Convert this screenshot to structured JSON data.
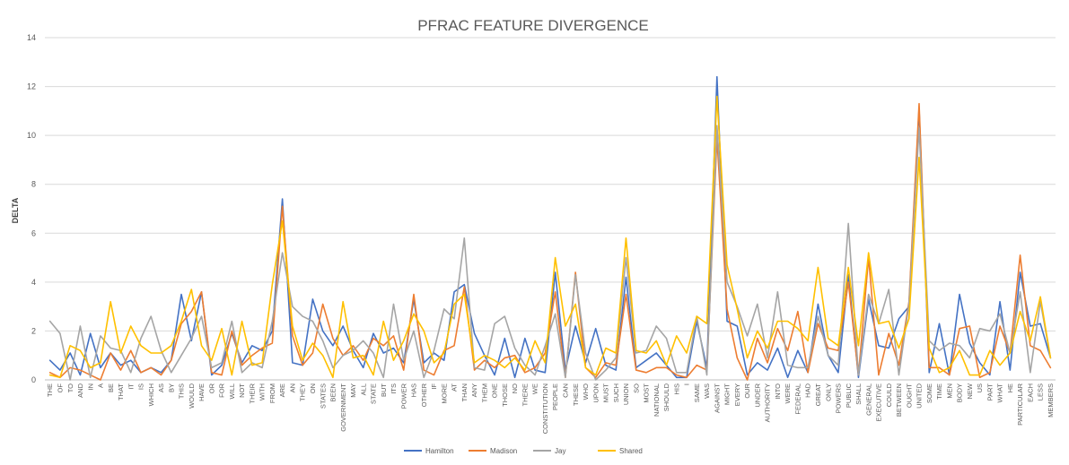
{
  "chart_data": {
    "type": "line",
    "title": "PFRAC FEATURE DIVERGENCE",
    "xlabel": "",
    "ylabel": "DELTA",
    "ylim": [
      0,
      14
    ],
    "yticks": [
      0,
      2,
      4,
      6,
      8,
      10,
      12,
      14
    ],
    "grid": true,
    "legend": "bottom",
    "categories": [
      "THE",
      "OF",
      "TO",
      "AND",
      "IN",
      "A",
      "BE",
      "THAT",
      "IT",
      "IS",
      "WHICH",
      "AS",
      "BY",
      "THIS",
      "WOULD",
      "HAVE",
      "OR",
      "FOR",
      "WILL",
      "NOT",
      "THEIR",
      "WITH",
      "FROM",
      "ARE",
      "AN",
      "THEY",
      "ON",
      "STATES",
      "BEEN",
      "GOVERNMENT",
      "MAY",
      "ALL",
      "STATE",
      "BUT",
      "ITS",
      "POWER",
      "HAS",
      "OTHER",
      "IF",
      "MORE",
      "AT",
      "THAN",
      "ANY",
      "THEM",
      "ONE",
      "THOSE",
      "NO",
      "THERE",
      "WE",
      "CONSTITUTION",
      "PEOPLE",
      "CAN",
      "THESE",
      "WHO",
      "UPON",
      "MUST",
      "SUCH",
      "UNION",
      "SO",
      "MOST",
      "NATIONAL",
      "SHOULD",
      "HIS",
      "I",
      "SAME",
      "WAS",
      "AGAINST",
      "MIGHT",
      "EVERY",
      "OUR",
      "UNDER",
      "AUTHORITY",
      "INTO",
      "WERE",
      "FEDERAL",
      "HAD",
      "GREAT",
      "ONLY",
      "POWERS",
      "PUBLIC",
      "SHALL",
      "GENERAL",
      "EXECUTIVE",
      "COULD",
      "BETWEEN",
      "OUGHT",
      "UNITED",
      "SOME",
      "TIME",
      "MEN",
      "BODY",
      "NEW",
      "US",
      "PART",
      "WHAT",
      "HE",
      "PARTICULAR",
      "EACH",
      "LESS",
      "MEMBERS"
    ],
    "series": [
      {
        "name": "Hamilton",
        "color": "#4472C4",
        "values": [
          0.8,
          0.4,
          1.1,
          0.2,
          1.9,
          0.5,
          1.1,
          0.6,
          0.8,
          0.3,
          0.5,
          0.3,
          0.8,
          3.5,
          1.6,
          3.6,
          0.2,
          0.6,
          1.9,
          0.7,
          1.4,
          1.2,
          2.0,
          7.4,
          0.7,
          0.6,
          3.3,
          2.0,
          1.4,
          2.2,
          1.2,
          0.5,
          1.9,
          1.1,
          1.3,
          0.7,
          3.3,
          0.7,
          1.1,
          0.8,
          3.6,
          3.9,
          1.9,
          1.0,
          0.2,
          1.7,
          0.1,
          1.7,
          0.4,
          0.3,
          4.4,
          0.4,
          2.2,
          0.7,
          2.1,
          0.6,
          0.4,
          4.2,
          0.5,
          0.8,
          1.1,
          0.6,
          0.1,
          0.1,
          2.4,
          0.5,
          12.4,
          2.4,
          2.2,
          0.2,
          0.7,
          0.4,
          1.3,
          0.1,
          1.2,
          0.3,
          3.1,
          1.0,
          0.3,
          4.3,
          0.1,
          3.3,
          1.4,
          1.3,
          2.5,
          3.0,
          11.1,
          0.3,
          2.3,
          0.2,
          3.5,
          1.5,
          0.7,
          0.2,
          3.2,
          0.4,
          4.4,
          2.2,
          2.3,
          0.9
        ]
      },
      {
        "name": "Madison",
        "color": "#ED7D31",
        "values": [
          0.3,
          0.1,
          0.5,
          0.4,
          0.2,
          0.0,
          1.1,
          0.4,
          1.2,
          0.3,
          0.5,
          0.2,
          0.8,
          2.3,
          2.8,
          3.6,
          0.3,
          0.2,
          2.0,
          0.6,
          1.0,
          1.3,
          1.5,
          7.1,
          1.8,
          0.6,
          1.1,
          3.1,
          1.7,
          1.0,
          1.4,
          0.8,
          1.7,
          1.4,
          1.8,
          0.4,
          3.5,
          0.4,
          0.2,
          1.2,
          1.4,
          3.8,
          0.4,
          0.8,
          0.5,
          0.9,
          1.0,
          0.3,
          0.5,
          1.1,
          3.6,
          0.1,
          4.4,
          0.5,
          0.1,
          0.7,
          0.6,
          3.5,
          0.4,
          0.3,
          0.5,
          0.5,
          0.2,
          0.1,
          0.6,
          0.4,
          9.9,
          2.9,
          0.9,
          0.0,
          1.7,
          0.7,
          2.1,
          1.2,
          2.8,
          0.3,
          2.3,
          1.3,
          1.2,
          4.0,
          0.2,
          5.0,
          0.2,
          1.9,
          0.6,
          3.2,
          11.3,
          0.5,
          0.5,
          0.2,
          2.1,
          2.2,
          0.1,
          0.3,
          2.2,
          1.1,
          5.1,
          1.4,
          1.2,
          0.5
        ]
      },
      {
        "name": "Jay",
        "color": "#A5A5A5",
        "values": [
          2.4,
          1.9,
          0.0,
          2.2,
          0.1,
          1.8,
          1.3,
          1.2,
          0.3,
          1.7,
          2.6,
          1.2,
          0.3,
          1.0,
          1.7,
          2.6,
          0.5,
          0.7,
          2.4,
          0.3,
          0.7,
          0.5,
          2.4,
          5.2,
          3.0,
          2.6,
          2.4,
          1.6,
          0.5,
          1.0,
          1.2,
          1.6,
          1.1,
          0.1,
          3.1,
          0.8,
          2.0,
          0.1,
          1.2,
          2.9,
          2.5,
          5.8,
          0.5,
          0.4,
          2.3,
          2.6,
          1.3,
          0.6,
          0.2,
          1.4,
          2.7,
          0.1,
          4.3,
          1.1,
          0.0,
          0.4,
          0.9,
          5.0,
          1.1,
          1.2,
          2.2,
          1.7,
          0.3,
          0.3,
          2.6,
          0.2,
          10.4,
          4.0,
          3.0,
          1.8,
          3.1,
          0.9,
          3.6,
          0.6,
          0.5,
          0.5,
          2.6,
          1.0,
          0.6,
          6.4,
          0.2,
          3.5,
          2.3,
          3.7,
          0.2,
          3.1,
          10.3,
          1.6,
          1.2,
          1.5,
          1.4,
          0.9,
          2.1,
          2.0,
          2.7,
          1.1,
          3.6,
          0.3,
          3.2,
          0.9
        ]
      },
      {
        "name": "Shared",
        "color": "#FFC000",
        "values": [
          0.2,
          0.1,
          1.4,
          1.2,
          0.5,
          0.7,
          3.2,
          1.1,
          2.2,
          1.4,
          1.1,
          1.1,
          1.4,
          2.4,
          3.7,
          1.4,
          0.8,
          2.1,
          0.2,
          2.4,
          0.6,
          0.7,
          3.9,
          6.5,
          2.2,
          0.8,
          1.5,
          1.0,
          0.1,
          3.2,
          0.9,
          1.0,
          0.2,
          2.4,
          0.8,
          1.6,
          2.7,
          2.0,
          0.7,
          1.1,
          3.1,
          3.5,
          0.7,
          1.0,
          0.8,
          0.5,
          0.9,
          0.4,
          1.6,
          0.7,
          5.0,
          2.2,
          3.1,
          0.5,
          0.2,
          1.3,
          1.1,
          5.8,
          1.2,
          1.1,
          1.6,
          0.6,
          1.8,
          1.1,
          2.6,
          2.3,
          11.6,
          4.7,
          2.9,
          0.9,
          2.0,
          1.3,
          2.4,
          2.4,
          2.1,
          1.6,
          4.6,
          1.7,
          1.4,
          4.6,
          1.4,
          5.2,
          2.3,
          2.4,
          1.3,
          2.5,
          9.1,
          1.3,
          0.3,
          0.5,
          1.2,
          0.2,
          0.2,
          1.2,
          0.6,
          1.1,
          2.8,
          1.6,
          3.4,
          0.9
        ]
      }
    ]
  }
}
